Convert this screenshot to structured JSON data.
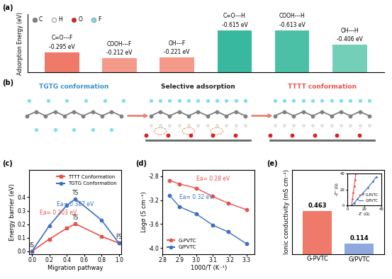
{
  "chart_data": [
    {
      "label": "(a)",
      "type": "bar",
      "y_label": "Adsorption Energy (eV)",
      "categories": [
        "C=O---F",
        "COOH---F",
        "OH---F",
        "C=O---H",
        "COOH---H",
        "OH---H"
      ],
      "values": [
        -0.295,
        -0.212,
        -0.221,
        -0.615,
        -0.613,
        -0.406
      ],
      "value_labels": [
        "-0.295 eV",
        "-0.212 eV",
        "-0.221 eV",
        "-0.615 eV",
        "-0.613 eV",
        "-0.406 eV"
      ],
      "colors": [
        "#f07a6a",
        "#f49a8a",
        "#f49a8a",
        "#38b89e",
        "#4cc0a6",
        "#74cfb9"
      ],
      "ylim": [
        0,
        -0.85
      ],
      "tick_labels": false,
      "data_labels": true,
      "atoms": [
        {
          "name": "C",
          "color": "#808080"
        },
        {
          "name": "H",
          "color": "#f2f2f2"
        },
        {
          "name": "O",
          "color": "#e02020"
        },
        {
          "name": "F",
          "color": "#80e0f0"
        }
      ]
    },
    {
      "label": "(c)",
      "type": "line",
      "x_label": "Migration pathway",
      "y_label": "Energy barrier (eV)",
      "x": [
        0.0,
        0.2,
        0.4,
        0.5,
        0.8,
        1.0
      ],
      "series": [
        {
          "name": "TTTT Conformation",
          "color": "#e8524a",
          "values": [
            0.0,
            0.09,
            0.17,
            0.203,
            0.11,
            0.06
          ],
          "marker": "square"
        },
        {
          "name": "TGTG Conformation",
          "color": "#3a6fc4",
          "values": [
            0.0,
            0.19,
            0.34,
            0.387,
            0.23,
            0.06
          ],
          "marker": "circle"
        }
      ],
      "xlim": [
        -0.03,
        1.03
      ],
      "xticks": [
        0.0,
        0.2,
        0.4,
        0.6,
        0.8,
        1.0
      ],
      "ylim": [
        -0.02,
        0.6
      ],
      "yticks": [
        0.0,
        0.1,
        0.2,
        0.3,
        0.4
      ],
      "legend": "upper right",
      "annotations": [
        {
          "text": "IS",
          "x": 0.0,
          "y": 0.0,
          "color": "#222222"
        },
        {
          "text": "TS",
          "x": 0.5,
          "y": 0.203,
          "color": "#222222"
        },
        {
          "text": "TS",
          "x": 0.5,
          "y": 0.387,
          "color": "#222222"
        },
        {
          "text": "FS",
          "x": 1.0,
          "y": 0.06,
          "color": "#222222"
        },
        {
          "text": "Ea= 0.387 eV",
          "x": 0.5,
          "y": 0.3,
          "color": "#3a6fc4"
        },
        {
          "text": "Ea= 0.203 eV",
          "x": 0.3,
          "y": 0.24,
          "color": "#e8524a"
        }
      ]
    },
    {
      "label": "(d)",
      "type": "scatter",
      "x_label": "1000/T (K⁻¹)",
      "y_label": "Logσ (S cm⁻¹)",
      "x": [
        2.84,
        2.9,
        3.0,
        3.1,
        3.19,
        3.3
      ],
      "series": [
        {
          "name": "G-PVTC",
          "color": "#e8524a",
          "values": [
            -2.87,
            -2.93,
            -3.0,
            -3.14,
            -3.25,
            -3.36
          ],
          "marker": "circle",
          "line_style": "solid"
        },
        {
          "name": "G/PVTC",
          "color": "#3a6fc4",
          "values": [
            -3.12,
            -3.31,
            -3.43,
            -3.62,
            -3.73,
            -3.93
          ],
          "marker": "circle",
          "line_style": "solid"
        }
      ],
      "xlim": [
        2.8,
        3.35
      ],
      "xticks": [
        2.8,
        2.9,
        3.0,
        3.1,
        3.2,
        3.3
      ],
      "ylim": [
        -4.1,
        -2.7
      ],
      "yticks": [
        -4.0,
        -3.6,
        -3.2,
        -2.8
      ],
      "legend": "lower left",
      "annotations": [
        {
          "text": "Ea= 0.28 eV",
          "x": 3.1,
          "y": -2.95,
          "color": "#e8524a"
        },
        {
          "text": "Ea= 0.32 eV",
          "x": 3.0,
          "y": -3.25,
          "color": "#3a6fc4"
        }
      ]
    },
    {
      "label": "(e)",
      "type": "bar",
      "y_label": "Ionic conductivity (mS cm⁻¹)",
      "categories": [
        "G-PVTC",
        "G/PVTC"
      ],
      "values": [
        0.463,
        0.114
      ],
      "colors": [
        "#f07a6a",
        "#8fa8e0"
      ],
      "data_labels": true,
      "ylim": [
        0,
        0.9
      ],
      "tick_labels": "x",
      "inset": {
        "type": "line",
        "x_label": "Z' (Ω)",
        "y_label": "-Z'' (Ω)",
        "series": [
          {
            "name": "G-PVTC",
            "color": "#e8524a",
            "x": [
              5,
              6,
              7,
              8,
              9,
              10
            ],
            "values": [
              0,
              8,
              16,
              24,
              32,
              40
            ]
          },
          {
            "name": "G/PVTC",
            "color": "#3a6fc4",
            "x": [
              5,
              8,
              12,
              18,
              24,
              30,
              34
            ],
            "values": [
              0,
              3,
              8,
              15,
              22,
              30,
              36
            ]
          }
        ],
        "xlim": [
          0,
          40
        ],
        "xticks": [
          0,
          20,
          40
        ],
        "ylim": [
          0,
          40
        ],
        "yticks": [
          0,
          20,
          40
        ],
        "legend": "lower right"
      }
    }
  ],
  "diagram": {
    "label": "(b)",
    "nodes": [
      {
        "label": "TGTG conformation",
        "color": "#3a8fd0"
      },
      {
        "label": "Selective adsorption",
        "color": "#222222"
      },
      {
        "label": "TTTT conformation",
        "color": "#e8524a"
      }
    ]
  }
}
